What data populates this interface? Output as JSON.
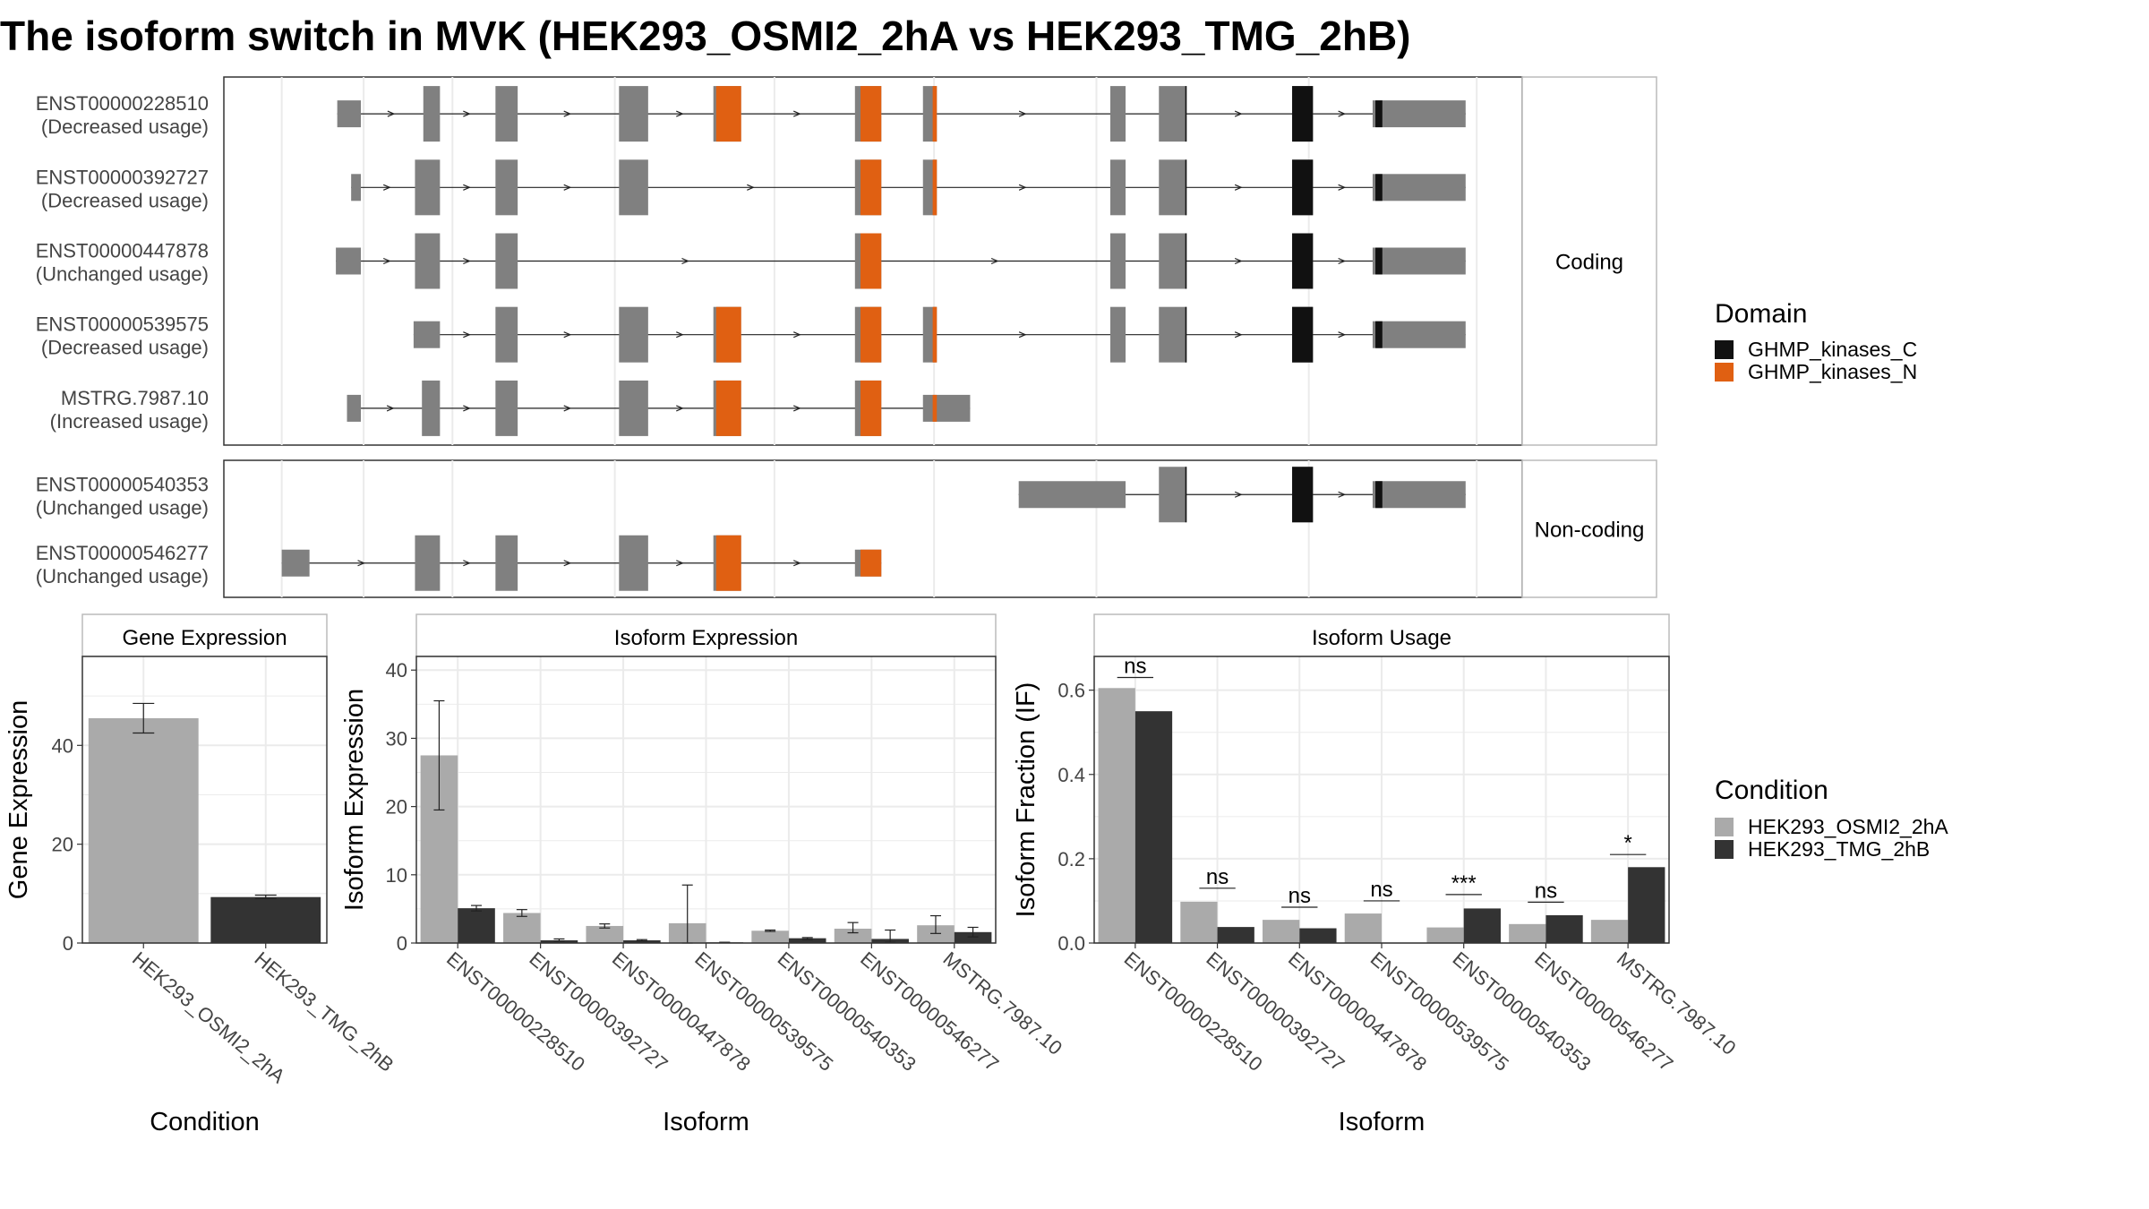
{
  "title": "The isoform switch in MVK (HEK293_OSMI2_2hA vs HEK293_TMG_2hB)",
  "colors": {
    "exon": "#808080",
    "domain_C": "#111111",
    "domain_N": "#E06012",
    "cond_A": "#AAAAAA",
    "cond_B": "#333333",
    "grid": "#EBEBEB",
    "panel_border": "#333333",
    "strip_border": "#BBBBBB"
  },
  "structure": {
    "strips": {
      "coding": "Coding",
      "noncoding": "Non-coding"
    },
    "coding_transcripts": [
      {
        "id": "ENST00000228510",
        "label": "(Decreased usage)",
        "exons": [
          [
            243,
            260
          ],
          [
            305,
            317
          ],
          [
            357,
            373
          ],
          [
            446,
            467
          ],
          [
            514,
            534
          ],
          [
            616,
            635
          ],
          [
            665,
            675
          ],
          [
            800,
            811
          ],
          [
            835,
            855
          ],
          [
            931,
            946
          ],
          [
            989,
            1056
          ]
        ]
      },
      {
        "id": "ENST00000392727",
        "label": "(Decreased usage)",
        "exons": [
          [
            253,
            260
          ],
          [
            299,
            317
          ],
          [
            357,
            373
          ],
          [
            446,
            467
          ],
          [
            616,
            635
          ],
          [
            665,
            675
          ],
          [
            800,
            811
          ],
          [
            835,
            855
          ],
          [
            931,
            946
          ],
          [
            989,
            1056
          ]
        ]
      },
      {
        "id": "ENST00000447878",
        "label": "(Unchanged usage)",
        "exons": [
          [
            242,
            260
          ],
          [
            299,
            317
          ],
          [
            357,
            373
          ],
          [
            616,
            635
          ],
          [
            800,
            811
          ],
          [
            835,
            855
          ],
          [
            931,
            946
          ],
          [
            989,
            1056
          ]
        ]
      },
      {
        "id": "ENST00000539575",
        "label": "(Decreased usage)",
        "exons": [
          [
            298,
            317
          ],
          [
            357,
            373
          ],
          [
            446,
            467
          ],
          [
            514,
            534
          ],
          [
            616,
            635
          ],
          [
            665,
            675
          ],
          [
            800,
            811
          ],
          [
            835,
            855
          ],
          [
            931,
            946
          ],
          [
            989,
            1056
          ]
        ]
      },
      {
        "id": "MSTRG.7987.10",
        "label": "(Increased usage)",
        "exons": [
          [
            250,
            260
          ],
          [
            304,
            317
          ],
          [
            357,
            373
          ],
          [
            446,
            467
          ],
          [
            514,
            534
          ],
          [
            616,
            635
          ],
          [
            665,
            699
          ]
        ]
      }
    ],
    "noncoding_transcripts": [
      {
        "id": "ENST00000540353",
        "label": "(Unchanged usage)",
        "exons": [
          [
            734,
            811
          ],
          [
            835,
            855
          ],
          [
            931,
            946
          ],
          [
            989,
            1056
          ]
        ]
      },
      {
        "id": "ENST00000546277",
        "label": "(Unchanged usage)",
        "exons": [
          [
            203,
            223
          ],
          [
            299,
            317
          ],
          [
            357,
            373
          ],
          [
            446,
            467
          ],
          [
            514,
            534
          ],
          [
            616,
            635
          ]
        ]
      }
    ],
    "legend_domain": {
      "title": "Domain",
      "items": [
        "GHMP_kinases_C",
        "GHMP_kinases_N"
      ]
    }
  },
  "chart_data": [
    {
      "type": "bar",
      "title": "Gene Expression",
      "xlabel": "Condition",
      "ylabel": "Gene Expression",
      "ylim": [
        0,
        58
      ],
      "yticks": [
        0,
        20,
        40
      ],
      "categories": [
        "HEK293_OSMI2_2hA",
        "HEK293_TMG_2hB"
      ],
      "values": [
        45.5,
        9.3
      ],
      "errors": [
        [
          42.5,
          48.5
        ],
        [
          9.0,
          9.7
        ]
      ]
    },
    {
      "type": "bar",
      "title": "Isoform Expression",
      "xlabel": "Isoform",
      "ylabel": "Isoform Expression",
      "ylim": [
        0,
        42
      ],
      "yticks": [
        0,
        10,
        20,
        30,
        40
      ],
      "categories": [
        "ENST00000228510",
        "ENST00000392727",
        "ENST00000447878",
        "ENST00000539575",
        "ENST00000540353",
        "ENST00000546277",
        "MSTRG.7987.10"
      ],
      "series": [
        {
          "name": "HEK293_OSMI2_2hA",
          "values": [
            27.5,
            4.4,
            2.5,
            2.9,
            1.8,
            2.1,
            2.6
          ],
          "errors": [
            [
              19.5,
              35.5
            ],
            [
              3.9,
              4.9
            ],
            [
              2.2,
              2.8
            ],
            [
              0.0,
              8.5
            ],
            [
              1.7,
              1.9
            ],
            [
              1.5,
              3.0
            ],
            [
              1.4,
              4.0
            ]
          ]
        },
        {
          "name": "HEK293_TMG_2hB",
          "values": [
            5.1,
            0.4,
            0.4,
            0.1,
            0.7,
            0.6,
            1.6
          ],
          "errors": [
            [
              4.7,
              5.5
            ],
            [
              0.3,
              0.6
            ],
            [
              0.3,
              0.5
            ],
            [
              0.1,
              0.1
            ],
            [
              0.5,
              0.8
            ],
            [
              0.1,
              1.9
            ],
            [
              0.9,
              2.3
            ]
          ]
        }
      ]
    },
    {
      "type": "bar",
      "title": "Isoform Usage",
      "xlabel": "Isoform",
      "ylabel": "Isoform Fraction (IF)",
      "ylim": [
        0,
        0.68
      ],
      "yticks": [
        0.0,
        0.2,
        0.4,
        0.6
      ],
      "categories": [
        "ENST00000228510",
        "ENST00000392727",
        "ENST00000447878",
        "ENST00000539575",
        "ENST00000540353",
        "ENST00000546277",
        "MSTRG.7987.10"
      ],
      "series": [
        {
          "name": "HEK293_OSMI2_2hA",
          "values": [
            0.605,
            0.098,
            0.055,
            0.07,
            0.037,
            0.045,
            0.055
          ]
        },
        {
          "name": "HEK293_TMG_2hB",
          "values": [
            0.55,
            0.038,
            0.035,
            0.0,
            0.082,
            0.066,
            0.18
          ]
        }
      ],
      "significance": [
        "ns",
        "ns",
        "ns",
        "ns",
        "***",
        "ns",
        "*"
      ],
      "significance_level": [
        0.63,
        0.13,
        0.085,
        0.1,
        0.115,
        0.097,
        0.21
      ]
    }
  ],
  "legend_condition": {
    "title": "Condition",
    "items": [
      "HEK293_OSMI2_2hA",
      "HEK293_TMG_2hB"
    ]
  }
}
